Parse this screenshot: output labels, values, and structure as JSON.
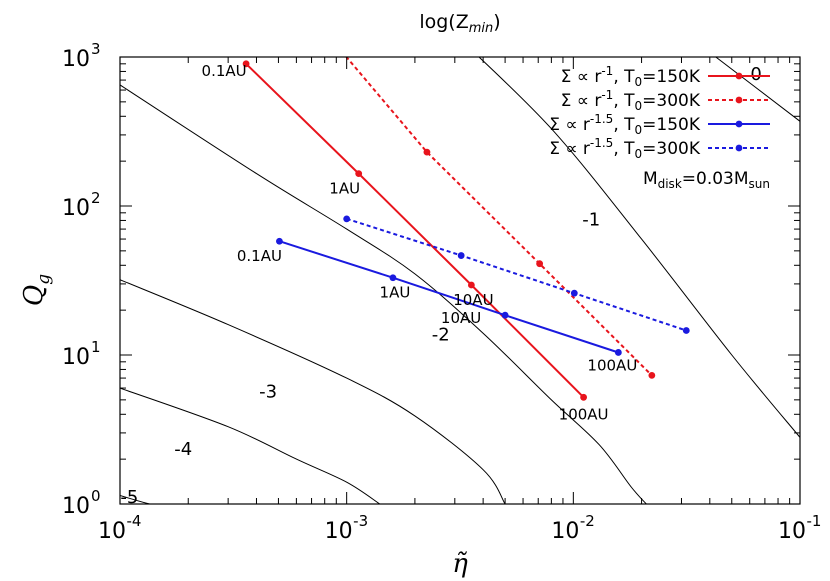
{
  "chart_data": {
    "type": "line",
    "title": "log(Z",
    "title_sub": "min",
    "title_close": ")",
    "xlabel": "η̃",
    "ylabel": "Q",
    "ylabel_sub": "g",
    "x_scale": "log",
    "y_scale": "log",
    "xlim": [
      0.0001,
      0.1
    ],
    "ylim": [
      1,
      1000
    ],
    "x_ticks": [
      {
        "base": "10",
        "exp": "-4",
        "value": 0.0001
      },
      {
        "base": "10",
        "exp": "-3",
        "value": 0.001
      },
      {
        "base": "10",
        "exp": "-2",
        "value": 0.01
      },
      {
        "base": "10",
        "exp": "-1",
        "value": 0.1
      }
    ],
    "y_ticks": [
      {
        "base": "10",
        "exp": "0",
        "value": 1
      },
      {
        "base": "10",
        "exp": "1",
        "value": 10
      },
      {
        "base": "10",
        "exp": "2",
        "value": 100
      },
      {
        "base": "10",
        "exp": "3",
        "value": 1000
      }
    ],
    "grid": false,
    "legend_position": "top-right",
    "legend_note": {
      "prefix": "M",
      "sub1": "disk",
      "mid": "=0.03M",
      "sub2": "sun"
    },
    "series": [
      {
        "name": "Σ ∝ r^-1, T0=150K",
        "legend": {
          "pre": "Σ ∝ r",
          "exp": "-1",
          "mid": ", T",
          "sub": "0",
          "post": "=150K"
        },
        "color": "#e8141c",
        "dash": "solid",
        "points": [
          [
            0.00036,
            900
          ],
          [
            0.00113,
            165
          ],
          [
            0.00355,
            29.5
          ],
          [
            0.0111,
            5.2
          ]
        ],
        "labels": [
          "0.1AU",
          "1AU",
          "10AU",
          "100AU"
        ]
      },
      {
        "name": "Σ ∝ r^-1, T0=300K",
        "legend": {
          "pre": "Σ ∝ r",
          "exp": "-1",
          "mid": ", T",
          "sub": "0",
          "post": "=300K"
        },
        "color": "#e8141c",
        "dash": "dashed",
        "points": [
          [
            0.00072,
            1800
          ],
          [
            0.00226,
            230
          ],
          [
            0.0071,
            41
          ],
          [
            0.0222,
            7.3
          ]
        ],
        "labels": [
          "",
          "",
          "",
          ""
        ]
      },
      {
        "name": "Σ ∝ r^-1.5, T0=150K",
        "legend": {
          "pre": "Σ ∝ r",
          "exp": "-1.5",
          "mid": ", T",
          "sub": "0",
          "post": "=150K"
        },
        "color": "#1a1adf",
        "dash": "solid",
        "points": [
          [
            0.000505,
            58
          ],
          [
            0.0016,
            33
          ],
          [
            0.005,
            18.5
          ],
          [
            0.0158,
            10.4
          ]
        ],
        "labels": [
          "0.1AU",
          "1AU",
          "10AU",
          "100AU"
        ]
      },
      {
        "name": "Σ ∝ r^-1.5, T0=300K",
        "legend": {
          "pre": "Σ ∝ r",
          "exp": "-1.5",
          "mid": ", T",
          "sub": "0",
          "post": "=300K"
        },
        "color": "#1a1adf",
        "dash": "dashed",
        "points": [
          [
            0.001,
            82
          ],
          [
            0.0032,
            46.5
          ],
          [
            0.0101,
            26
          ],
          [
            0.0315,
            14.6
          ]
        ],
        "labels": [
          "",
          "",
          "",
          ""
        ]
      }
    ],
    "contours": [
      {
        "label": "0",
        "points": [
          [
            0.0425,
            1000
          ],
          [
            0.1,
            370
          ]
        ]
      },
      {
        "label": "-1",
        "points": [
          [
            0.0032,
            1300
          ],
          [
            0.008,
            330
          ],
          [
            0.02,
            60
          ],
          [
            0.05,
            10
          ],
          [
            0.1,
            2.8
          ]
        ]
      },
      {
        "label": "-2",
        "points": [
          [
            0.0001,
            650
          ],
          [
            0.0004,
            165
          ],
          [
            0.001,
            70
          ],
          [
            0.002,
            35
          ],
          [
            0.004,
            14
          ],
          [
            0.008,
            5
          ],
          [
            0.013,
            2.5
          ],
          [
            0.018,
            1.3
          ],
          [
            0.021,
            1
          ]
        ]
      },
      {
        "label": "-3",
        "points": [
          [
            0.0001,
            32
          ],
          [
            0.0003,
            16
          ],
          [
            0.001,
            7
          ],
          [
            0.002,
            3.9
          ],
          [
            0.004,
            1.7
          ],
          [
            0.005,
            1
          ]
        ]
      },
      {
        "label": "-4",
        "points": [
          [
            0.0001,
            6
          ],
          [
            0.0003,
            3.3
          ],
          [
            0.0006,
            2
          ],
          [
            0.001,
            1.4
          ],
          [
            0.0014,
            1
          ]
        ]
      },
      {
        "label": "-5",
        "points": [
          [
            0.0001,
            1.14
          ],
          [
            0.00012,
            1.05
          ],
          [
            0.000135,
            1
          ]
        ]
      }
    ],
    "contour_labels": [
      {
        "text": "0",
        "x": 0.064,
        "y": 760
      },
      {
        "text": "-1",
        "x": 0.012,
        "y": 80
      },
      {
        "text": "-2",
        "x": 0.0026,
        "y": 13.5
      },
      {
        "text": "-3",
        "x": 0.00045,
        "y": 5.6
      },
      {
        "text": "-4",
        "x": 0.00019,
        "y": 2.3
      },
      {
        "text": "-5",
        "x": 0.00011,
        "y": 1.1
      }
    ]
  }
}
